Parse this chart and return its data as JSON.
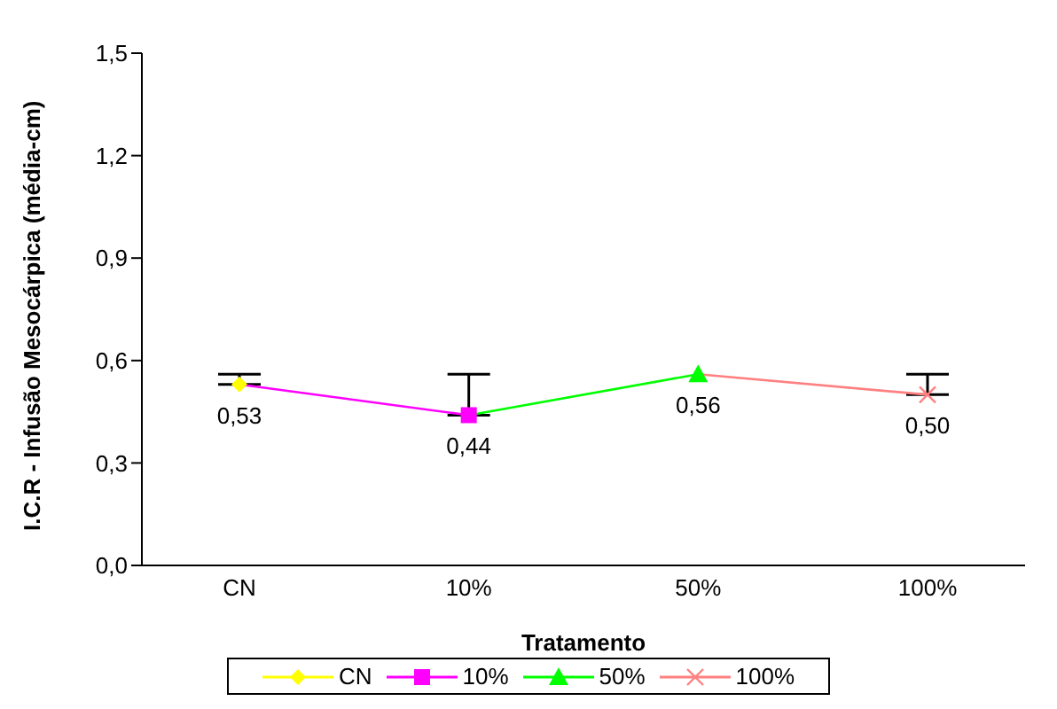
{
  "chart_data": {
    "type": "line",
    "xlabel": "Tratamento",
    "ylabel": "I.C.R - Infusão Mesocárpica (média-cm)",
    "categories": [
      "CN",
      "10%",
      "50%",
      "100%"
    ],
    "series": [
      {
        "name": "CN",
        "color": "#ffff00",
        "marker": "diamond",
        "values": [
          0.53,
          null,
          null,
          null
        ],
        "errors": [
          [
            0.53,
            0.56
          ],
          null,
          null,
          null
        ],
        "value_labels": [
          "0,53",
          null,
          null,
          null
        ]
      },
      {
        "name": "10%",
        "color": "#ff00ff",
        "marker": "square",
        "values": [
          0.53,
          0.44,
          null,
          null
        ],
        "errors": [
          null,
          [
            0.44,
            0.56
          ],
          null,
          null
        ],
        "value_labels": [
          null,
          "0,44",
          null,
          null
        ]
      },
      {
        "name": "50%",
        "color": "#00ff00",
        "marker": "triangle",
        "values": [
          null,
          0.44,
          0.56,
          null
        ],
        "value_labels": [
          null,
          null,
          "0,56",
          null
        ]
      },
      {
        "name": "100%",
        "color": "#ff8080",
        "marker": "cross",
        "values": [
          null,
          null,
          0.56,
          0.5
        ],
        "errors": [
          null,
          null,
          null,
          [
            0.5,
            0.56
          ]
        ],
        "value_labels": [
          null,
          null,
          null,
          "0,50"
        ]
      }
    ],
    "ylim": [
      0,
      1.5
    ],
    "yticks": [
      {
        "value": 0,
        "label": "0,0"
      },
      {
        "value": 0.3,
        "label": "0,3"
      },
      {
        "value": 0.6,
        "label": "0,6"
      },
      {
        "value": 0.9,
        "label": "0,9"
      },
      {
        "value": 1.2,
        "label": "1,2"
      },
      {
        "value": 1.5,
        "label": "1,5"
      }
    ],
    "grid": false,
    "legend": "bottom"
  }
}
